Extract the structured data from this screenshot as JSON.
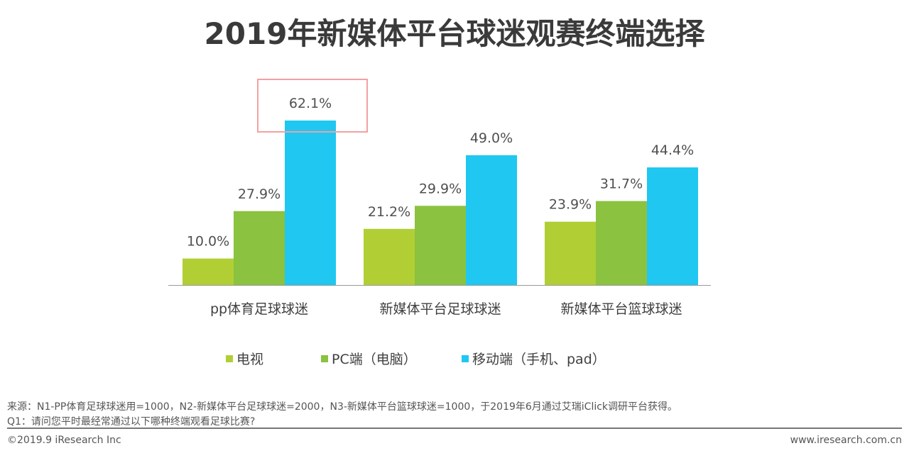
{
  "chart_data": {
    "type": "bar",
    "title": "2019年新媒体平台球迷观赛终端选择",
    "categories": [
      "pp体育足球球迷",
      "新媒体平台足球球迷",
      "新媒体平台篮球球迷"
    ],
    "series": [
      {
        "name": "电视",
        "values": [
          10.0,
          21.2,
          23.9
        ],
        "color": "#b1cf35"
      },
      {
        "name": "PC端（电脑）",
        "values": [
          27.9,
          29.9,
          31.7
        ],
        "color": "#8bc23f"
      },
      {
        "name": "移动端（手机、pad）",
        "values": [
          62.1,
          49.0,
          44.4
        ],
        "color": "#1fc7f1"
      }
    ],
    "value_suffix": "%",
    "ylim": [
      0,
      70
    ],
    "grid": false,
    "legend_position": "bottom",
    "highlight": {
      "category": "pp体育足球球迷",
      "series": "移动端（手机、pad）",
      "color": "#f4a0a0"
    }
  },
  "footer": {
    "source": "来源：N1-PP体育足球球迷用=1000，N2-新媒体平台足球球迷=2000，N3-新媒体平台篮球球迷=1000，于2019年6月通过艾瑞iClick调研平台获得。",
    "question": "Q1：请问您平时最经常通过以下哪种终端观看足球比赛?",
    "copyright": "©2019.9 iResearch Inc",
    "website": "www.iresearch.com.cn"
  }
}
